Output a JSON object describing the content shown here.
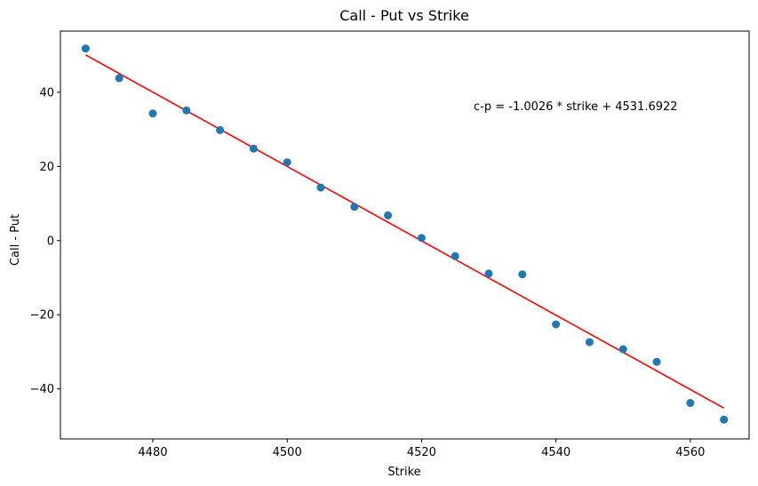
{
  "chart_data": {
    "type": "scatter",
    "title": "Call - Put vs Strike",
    "xlabel": "Strike",
    "ylabel": "Call - Put",
    "xlim": [
      4466.25,
      4568.75
    ],
    "ylim": [
      -53.5,
      56.5
    ],
    "xticks": [
      4480,
      4500,
      4520,
      4540,
      4560
    ],
    "yticks": [
      -40,
      -20,
      0,
      20,
      40
    ],
    "grid": false,
    "series": [
      {
        "kind": "scatter",
        "color": "#1f77b4",
        "x": [
          4470,
          4475,
          4480,
          4485,
          4490,
          4495,
          4500,
          4505,
          4510,
          4515,
          4520,
          4525,
          4530,
          4535,
          4540,
          4545,
          4550,
          4555,
          4560,
          4565
        ],
        "y": [
          51.8,
          43.8,
          34.3,
          35.1,
          29.8,
          24.8,
          21.1,
          14.3,
          9.1,
          6.8,
          0.7,
          -4.2,
          -8.9,
          -9.1,
          -22.6,
          -27.4,
          -29.3,
          -32.7,
          -43.8,
          -48.3
        ]
      },
      {
        "kind": "line",
        "color": "#ff0000",
        "x": [
          4470,
          4565
        ],
        "y": [
          50.07,
          -45.18
        ]
      }
    ],
    "annotation": "c-p = -1.0026 * strike + 4531.6922"
  }
}
